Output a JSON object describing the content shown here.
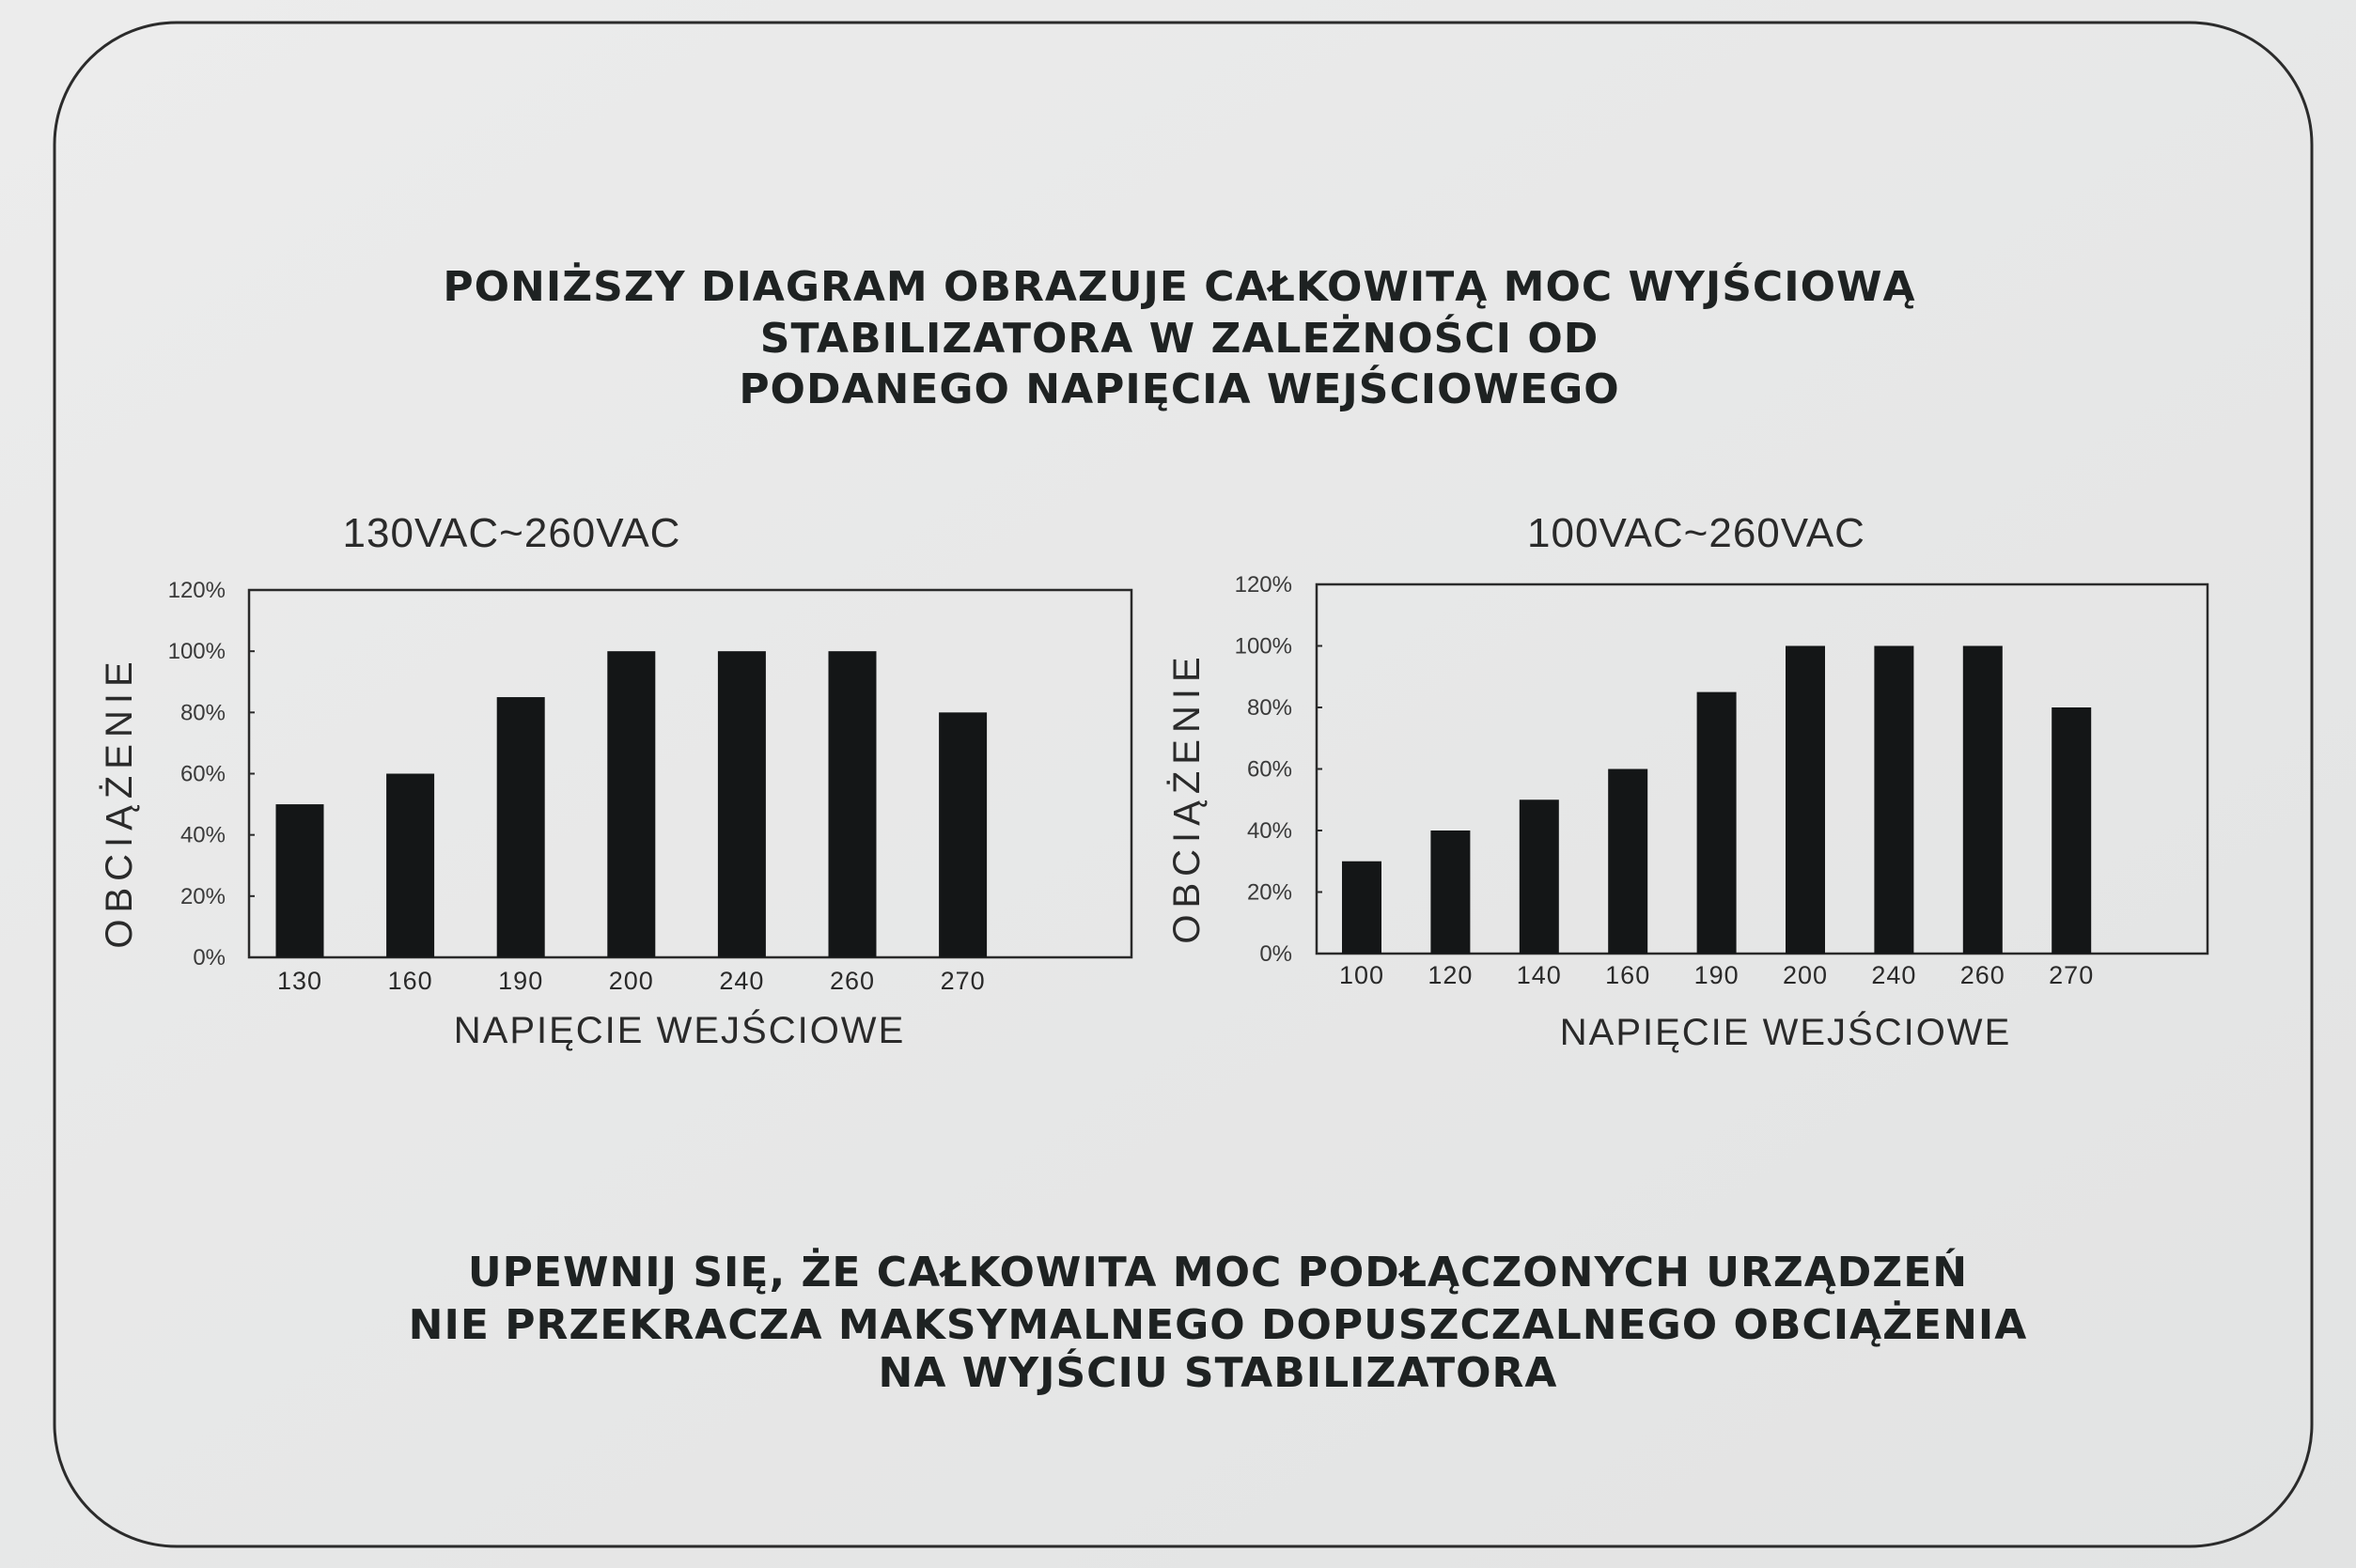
{
  "header": {
    "lines": [
      "PONIŻSZY DIAGRAM OBRAZUJE CAŁKOWITĄ MOC WYJŚCIOWĄ",
      "STABILIZATORA W ZALEŻNOŚCI OD",
      "PODANEGO NAPIĘCIA WEJŚCIOWEGO"
    ]
  },
  "footer": {
    "lines": [
      "UPEWNIJ SIĘ, ŻE CAŁKOWITA MOC PODŁĄCZONYCH URZĄDZEŃ",
      "NIE PRZEKRACZA MAKSYMALNEGO DOPUSZCZALNEGO OBCIĄŻENIA",
      "NA WYJŚCIU STABILIZATORA"
    ]
  },
  "chart_data": [
    {
      "type": "bar",
      "title": "130VAC~260VAC",
      "xlabel": "NAPIĘCIE WEJŚCIOWE",
      "ylabel": "OBCIĄŻENIE",
      "categories": [
        "130",
        "160",
        "190",
        "200",
        "240",
        "260",
        "270"
      ],
      "values": [
        50,
        60,
        85,
        100,
        100,
        100,
        80
      ],
      "ylim": [
        0,
        120
      ],
      "yticks": [
        "0%",
        "20%",
        "40%",
        "60%",
        "80%",
        "100%",
        "120%"
      ],
      "grid": false,
      "bar_color": "#141617"
    },
    {
      "type": "bar",
      "title": "100VAC~260VAC",
      "xlabel": "NAPIĘCIE WEJŚCIOWE",
      "ylabel": "OBCIĄŻENIE",
      "categories": [
        "100",
        "120",
        "140",
        "160",
        "190",
        "200",
        "240",
        "260",
        "270"
      ],
      "values": [
        30,
        40,
        50,
        60,
        85,
        100,
        100,
        100,
        80
      ],
      "ylim": [
        0,
        120
      ],
      "yticks": [
        "0%",
        "20%",
        "40%",
        "60%",
        "80%",
        "100%",
        "120%"
      ],
      "grid": false,
      "bar_color": "#141617"
    }
  ]
}
